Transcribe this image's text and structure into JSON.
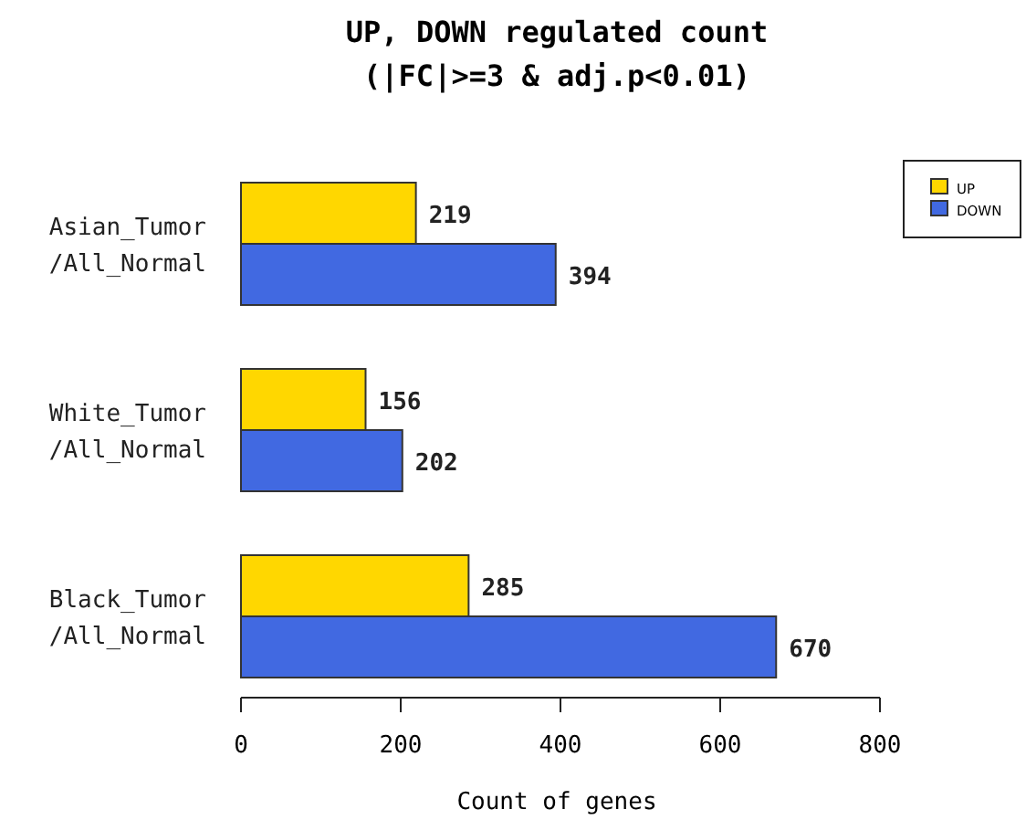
{
  "chart_data": {
    "type": "bar",
    "orientation": "horizontal",
    "title": "UP, DOWN regulated count\n(|FC|>=3 & adj.p<0.01)",
    "xlabel": "Count of genes",
    "categories": [
      "Asian_Tumor\n/All_Normal",
      "White_Tumor\n/All_Normal",
      "Black_Tumor\n/All_Normal"
    ],
    "series": [
      {
        "name": "UP",
        "color": "#ffd700",
        "values": [
          219,
          156,
          285
        ]
      },
      {
        "name": "DOWN",
        "color": "#4169e1",
        "values": [
          394,
          202,
          670
        ]
      }
    ],
    "xlim": [
      0,
      800
    ],
    "xticks": [
      0,
      200,
      400,
      600,
      800
    ],
    "data_labels": true,
    "legend": "top right",
    "grid": false
  }
}
